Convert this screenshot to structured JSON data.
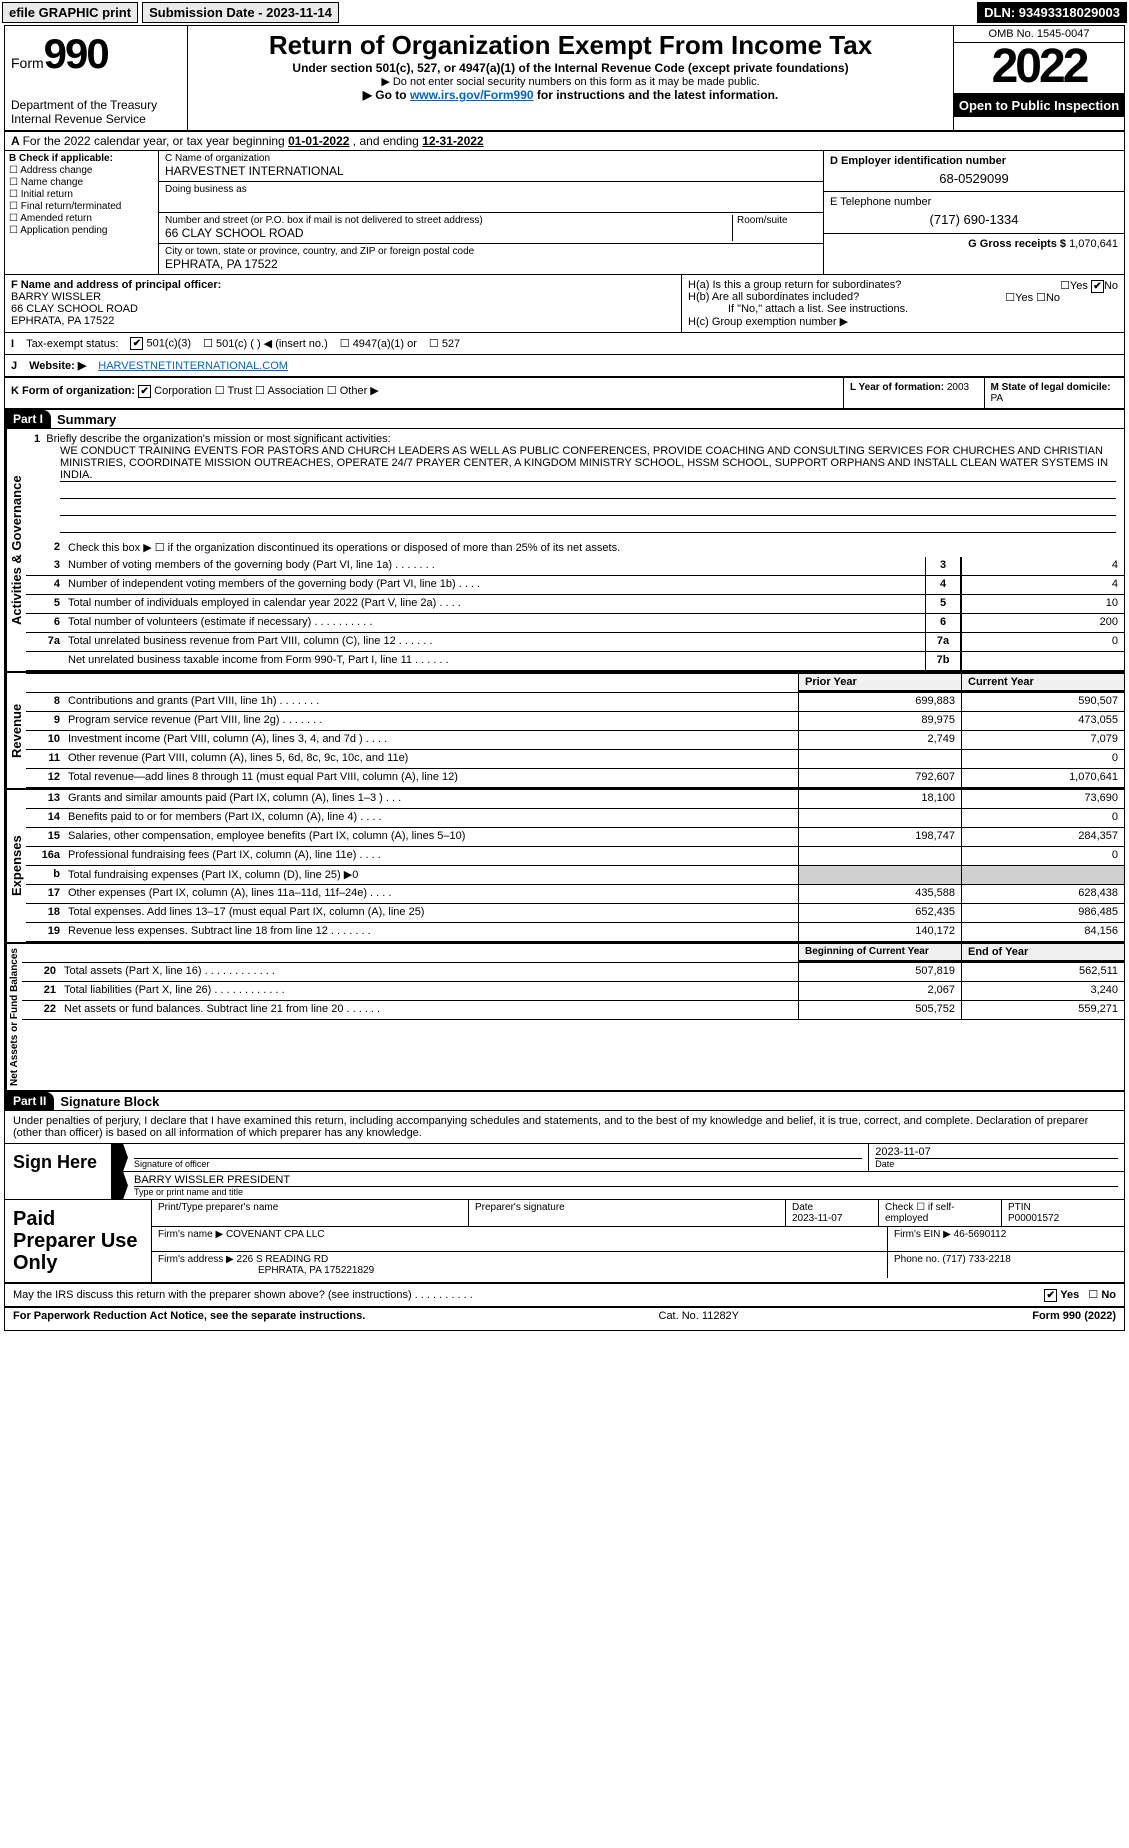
{
  "topbar": {
    "efile": "efile GRAPHIC print",
    "submission": "Submission Date - 2023-11-14",
    "dln": "DLN: 93493318029003"
  },
  "header": {
    "form_label": "Form",
    "form_number": "990",
    "dept": "Department of the Treasury",
    "irs": "Internal Revenue Service",
    "title": "Return of Organization Exempt From Income Tax",
    "sub1": "Under section 501(c), 527, or 4947(a)(1) of the Internal Revenue Code (except private foundations)",
    "sub2": "▶ Do not enter social security numbers on this form as it may be made public.",
    "sub3_pre": "▶ Go to ",
    "sub3_link": "www.irs.gov/Form990",
    "sub3_post": " for instructions and the latest information.",
    "omb": "OMB No. 1545-0047",
    "year": "2022",
    "open": "Open to Public Inspection"
  },
  "row_a": {
    "text_pre": "For the 2022 calendar year, or tax year beginning ",
    "begin": "01-01-2022",
    "mid": " , and ending ",
    "end": "12-31-2022"
  },
  "section_b": {
    "label": "B Check if applicable:",
    "items": [
      "Address change",
      "Name change",
      "Initial return",
      "Final return/terminated",
      "Amended return",
      "Application pending"
    ]
  },
  "section_c": {
    "name_lbl": "C Name of organization",
    "name": "HARVESTNET INTERNATIONAL",
    "dba_lbl": "Doing business as",
    "dba": "",
    "street_lbl": "Number and street (or P.O. box if mail is not delivered to street address)",
    "room_lbl": "Room/suite",
    "street": "66 CLAY SCHOOL ROAD",
    "city_lbl": "City or town, state or province, country, and ZIP or foreign postal code",
    "city": "EPHRATA, PA  17522"
  },
  "section_d": {
    "lbl": "D Employer identification number",
    "val": "68-0529099"
  },
  "section_e": {
    "lbl": "E Telephone number",
    "val": "(717) 690-1334"
  },
  "section_g": {
    "lbl": "G Gross receipts $",
    "val": "1,070,641"
  },
  "section_f": {
    "lbl": "F Name and address of principal officer:",
    "name": "BARRY WISSLER",
    "street": "66 CLAY SCHOOL ROAD",
    "city": "EPHRATA, PA  17522"
  },
  "section_h": {
    "ha": "H(a)  Is this a group return for subordinates?",
    "hb": "H(b)  Are all subordinates included?",
    "hb_note": "If \"No,\" attach a list. See instructions.",
    "hc": "H(c)  Group exemption number ▶"
  },
  "section_i": {
    "lbl": "Tax-exempt status:",
    "opts": [
      "501(c)(3)",
      "501(c) (  ) ◀ (insert no.)",
      "4947(a)(1) or",
      "527"
    ]
  },
  "section_j": {
    "lbl": "Website: ▶",
    "val": "HARVESTNETINTERNATIONAL.COM"
  },
  "section_k": {
    "lbl": "K Form of organization:",
    "opts": [
      "Corporation",
      "Trust",
      "Association",
      "Other ▶"
    ],
    "l_lbl": "L Year of formation:",
    "l_val": "2003",
    "m_lbl": "M State of legal domicile:",
    "m_val": "PA"
  },
  "part1": {
    "hdr": "Part I",
    "title": "Summary",
    "q1": "Briefly describe the organization's mission or most significant activities:",
    "mission": "WE CONDUCT TRAINING EVENTS FOR PASTORS AND CHURCH LEADERS AS WELL AS PUBLIC CONFERENCES, PROVIDE COACHING AND CONSULTING SERVICES FOR CHURCHES AND CHRISTIAN MINISTRIES, COORDINATE MISSION OUTREACHES, OPERATE 24/7 PRAYER CENTER, A KINGDOM MINISTRY SCHOOL, HSSM SCHOOL, SUPPORT ORPHANS AND INSTALL CLEAN WATER SYSTEMS IN INDIA.",
    "q2": "Check this box ▶ ☐ if the organization discontinued its operations or disposed of more than 25% of its net assets.",
    "v_gov": "Activities & Governance",
    "v_rev": "Revenue",
    "v_exp": "Expenses",
    "v_net": "Net Assets or Fund Balances",
    "lines_gov": [
      {
        "n": "3",
        "d": "Number of voting members of the governing body (Part VI, line 1a)  .   .   .   .   .   .   .",
        "b": "3",
        "v": "4"
      },
      {
        "n": "4",
        "d": "Number of independent voting members of the governing body (Part VI, line 1b)   .   .   .   .",
        "b": "4",
        "v": "4"
      },
      {
        "n": "5",
        "d": "Total number of individuals employed in calendar year 2022 (Part V, line 2a)   .   .   .   .",
        "b": "5",
        "v": "10"
      },
      {
        "n": "6",
        "d": "Total number of volunteers (estimate if necessary)   .   .   .   .   .   .   .   .   .   .",
        "b": "6",
        "v": "200"
      },
      {
        "n": "7a",
        "d": "Total unrelated business revenue from Part VIII, column (C), line 12   .   .   .   .   .   .",
        "b": "7a",
        "v": "0"
      },
      {
        "n": "",
        "d": "Net unrelated business taxable income from Form 990-T, Part I, line 11   .   .   .   .   .   .",
        "b": "7b",
        "v": ""
      }
    ],
    "col_prior": "Prior Year",
    "col_current": "Current Year",
    "lines_rev": [
      {
        "n": "8",
        "d": "Contributions and grants (Part VIII, line 1h)   .   .   .   .   .   .   .",
        "p": "699,883",
        "c": "590,507"
      },
      {
        "n": "9",
        "d": "Program service revenue (Part VIII, line 2g)   .   .   .   .   .   .   .",
        "p": "89,975",
        "c": "473,055"
      },
      {
        "n": "10",
        "d": "Investment income (Part VIII, column (A), lines 3, 4, and 7d )   .   .   .   .",
        "p": "2,749",
        "c": "7,079"
      },
      {
        "n": "11",
        "d": "Other revenue (Part VIII, column (A), lines 5, 6d, 8c, 9c, 10c, and 11e)",
        "p": "",
        "c": "0"
      },
      {
        "n": "12",
        "d": "Total revenue—add lines 8 through 11 (must equal Part VIII, column (A), line 12)",
        "p": "792,607",
        "c": "1,070,641"
      }
    ],
    "lines_exp": [
      {
        "n": "13",
        "d": "Grants and similar amounts paid (Part IX, column (A), lines 1–3 )   .   .   .",
        "p": "18,100",
        "c": "73,690"
      },
      {
        "n": "14",
        "d": "Benefits paid to or for members (Part IX, column (A), line 4)   .   .   .   .",
        "p": "",
        "c": "0"
      },
      {
        "n": "15",
        "d": "Salaries, other compensation, employee benefits (Part IX, column (A), lines 5–10)",
        "p": "198,747",
        "c": "284,357"
      },
      {
        "n": "16a",
        "d": "Professional fundraising fees (Part IX, column (A), line 11e)   .   .   .   .",
        "p": "",
        "c": "0"
      },
      {
        "n": "b",
        "d": "Total fundraising expenses (Part IX, column (D), line 25) ▶0",
        "p": "grey",
        "c": "grey"
      },
      {
        "n": "17",
        "d": "Other expenses (Part IX, column (A), lines 11a–11d, 11f–24e)   .   .   .   .",
        "p": "435,588",
        "c": "628,438"
      },
      {
        "n": "18",
        "d": "Total expenses. Add lines 13–17 (must equal Part IX, column (A), line 25)",
        "p": "652,435",
        "c": "986,485"
      },
      {
        "n": "19",
        "d": "Revenue less expenses. Subtract line 18 from line 12   .   .   .   .   .   .   .",
        "p": "140,172",
        "c": "84,156"
      }
    ],
    "col_begin": "Beginning of Current Year",
    "col_end": "End of Year",
    "lines_net": [
      {
        "n": "20",
        "d": "Total assets (Part X, line 16)   .   .   .   .   .   .   .   .   .   .   .   .",
        "p": "507,819",
        "c": "562,511"
      },
      {
        "n": "21",
        "d": "Total liabilities (Part X, line 26)   .   .   .   .   .   .   .   .   .   .   .   .",
        "p": "2,067",
        "c": "3,240"
      },
      {
        "n": "22",
        "d": "Net assets or fund balances. Subtract line 21 from line 20   .   .   .   .   .   .",
        "p": "505,752",
        "c": "559,271"
      }
    ]
  },
  "part2": {
    "hdr": "Part II",
    "title": "Signature Block",
    "decl": "Under penalties of perjury, I declare that I have examined this return, including accompanying schedules and statements, and to the best of my knowledge and belief, it is true, correct, and complete. Declaration of preparer (other than officer) is based on all information of which preparer has any knowledge.",
    "sign_here": "Sign Here",
    "sig_officer_lbl": "Signature of officer",
    "sig_date": "2023-11-07",
    "date_lbl": "Date",
    "officer_name": "BARRY WISSLER  PRESIDENT",
    "name_title_lbl": "Type or print name and title",
    "paid": "Paid Preparer Use Only",
    "prep_name_lbl": "Print/Type preparer's name",
    "prep_sig_lbl": "Preparer's signature",
    "prep_date_lbl": "Date",
    "prep_date": "2023-11-07",
    "self_emp": "Check ☐ if self-employed",
    "ptin_lbl": "PTIN",
    "ptin": "P00001572",
    "firm_name_lbl": "Firm's name    ▶",
    "firm_name": "COVENANT CPA LLC",
    "firm_ein_lbl": "Firm's EIN ▶",
    "firm_ein": "46-5690112",
    "firm_addr_lbl": "Firm's address ▶",
    "firm_addr1": "226 S READING RD",
    "firm_addr2": "EPHRATA, PA  175221829",
    "phone_lbl": "Phone no.",
    "phone": "(717) 733-2218",
    "discuss": "May the IRS discuss this return with the preparer shown above? (see instructions)   .   .   .   .   .   .   .   .   .   .",
    "yes": "Yes",
    "no": "No"
  },
  "footer": {
    "pra": "For Paperwork Reduction Act Notice, see the separate instructions.",
    "cat": "Cat. No. 11282Y",
    "form": "Form 990 (2022)"
  }
}
